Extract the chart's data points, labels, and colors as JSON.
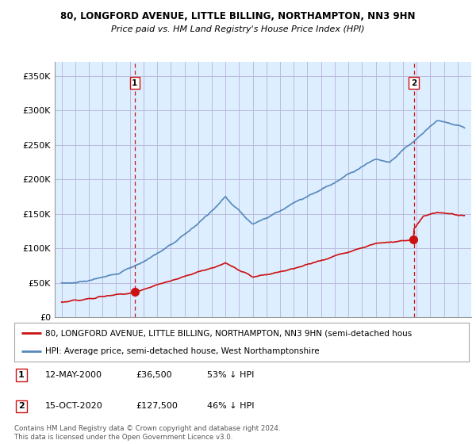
{
  "title1": "80, LONGFORD AVENUE, LITTLE BILLING, NORTHAMPTON, NN3 9HN",
  "title2": "Price paid vs. HM Land Registry's House Price Index (HPI)",
  "ylabel_ticks": [
    "£0",
    "£50K",
    "£100K",
    "£150K",
    "£200K",
    "£250K",
    "£300K",
    "£350K"
  ],
  "ytick_values": [
    0,
    50000,
    100000,
    150000,
    200000,
    250000,
    300000,
    350000
  ],
  "ylim": [
    0,
    370000
  ],
  "xlim_start": 1994.5,
  "xlim_end": 2025.0,
  "hpi_color": "#5588bb",
  "price_color": "#cc1111",
  "vline_color": "#cc1111",
  "plot_bg_color": "#ddeeff",
  "marker1_x": 2000.36,
  "marker1_y": 36500,
  "marker2_x": 2020.79,
  "marker2_y": 127500,
  "legend_line1": "80, LONGFORD AVENUE, LITTLE BILLING, NORTHAMPTON, NN3 9HN (semi-detached hous",
  "legend_line2": "HPI: Average price, semi-detached house, West Northamptonshire",
  "table_rows": [
    [
      "1",
      "12-MAY-2000",
      "£36,500",
      "53% ↓ HPI"
    ],
    [
      "2",
      "15-OCT-2020",
      "£127,500",
      "46% ↓ HPI"
    ]
  ],
  "footnote": "Contains HM Land Registry data © Crown copyright and database right 2024.\nThis data is licensed under the Open Government Licence v3.0.",
  "background_color": "#ffffff",
  "grid_color": "#bbbbdd"
}
